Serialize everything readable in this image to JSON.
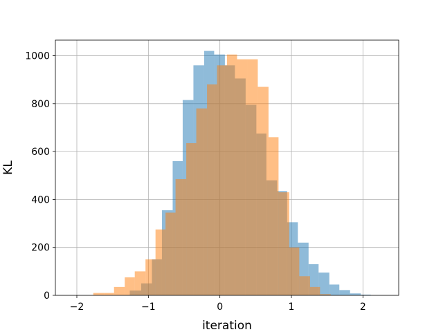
{
  "chart_data": {
    "type": "histogram",
    "xlabel": "iteration",
    "ylabel": "KL",
    "xlim": [
      -2.3,
      2.5
    ],
    "ylim": [
      0,
      1065
    ],
    "grid": true,
    "x_ticks": [
      -2,
      -1,
      0,
      1,
      2
    ],
    "x_tick_labels": [
      "−2",
      "−1",
      "0",
      "1",
      "2"
    ],
    "y_ticks": [
      0,
      200,
      400,
      600,
      800,
      1000
    ],
    "y_tick_labels": [
      "0",
      "200",
      "400",
      "600",
      "800",
      "1000"
    ],
    "series": [
      {
        "color": "#1f77b4",
        "alpha": 0.5,
        "bins": [
          [
            -1.26,
            -1.1,
            20
          ],
          [
            -1.1,
            -0.95,
            50
          ],
          [
            -0.95,
            -0.81,
            150
          ],
          [
            -0.81,
            -0.66,
            355
          ],
          [
            -0.66,
            -0.52,
            560
          ],
          [
            -0.52,
            -0.37,
            815
          ],
          [
            -0.37,
            -0.22,
            960
          ],
          [
            -0.22,
            -0.08,
            1020
          ],
          [
            -0.08,
            0.07,
            1005
          ],
          [
            0.07,
            0.21,
            960
          ],
          [
            0.21,
            0.36,
            905
          ],
          [
            0.36,
            0.51,
            795
          ],
          [
            0.51,
            0.65,
            675
          ],
          [
            0.65,
            0.8,
            480
          ],
          [
            0.8,
            0.94,
            435
          ],
          [
            0.94,
            1.09,
            305
          ],
          [
            1.09,
            1.24,
            220
          ],
          [
            1.24,
            1.38,
            130
          ],
          [
            1.38,
            1.53,
            95
          ],
          [
            1.53,
            1.67,
            45
          ],
          [
            1.67,
            1.82,
            22
          ],
          [
            1.82,
            1.97,
            8
          ],
          [
            1.97,
            2.11,
            3
          ]
        ]
      },
      {
        "color": "#ff7f0e",
        "alpha": 0.5,
        "bins": [
          [
            -1.77,
            -1.62,
            10
          ],
          [
            -1.62,
            -1.48,
            10
          ],
          [
            -1.48,
            -1.33,
            35
          ],
          [
            -1.33,
            -1.19,
            75
          ],
          [
            -1.19,
            -1.04,
            100
          ],
          [
            -1.04,
            -0.9,
            150
          ],
          [
            -0.9,
            -0.76,
            275
          ],
          [
            -0.76,
            -0.62,
            345
          ],
          [
            -0.62,
            -0.47,
            485
          ],
          [
            -0.47,
            -0.33,
            635
          ],
          [
            -0.33,
            -0.18,
            780
          ],
          [
            -0.18,
            -0.04,
            880
          ],
          [
            -0.04,
            0.1,
            960
          ],
          [
            0.1,
            0.24,
            1005
          ],
          [
            0.24,
            0.39,
            985
          ],
          [
            0.39,
            0.53,
            985
          ],
          [
            0.53,
            0.68,
            870
          ],
          [
            0.68,
            0.82,
            660
          ],
          [
            0.82,
            0.97,
            430
          ],
          [
            0.97,
            1.11,
            200
          ],
          [
            1.11,
            1.26,
            80
          ],
          [
            1.26,
            1.4,
            35
          ],
          [
            1.4,
            1.55,
            5
          ]
        ]
      }
    ]
  }
}
